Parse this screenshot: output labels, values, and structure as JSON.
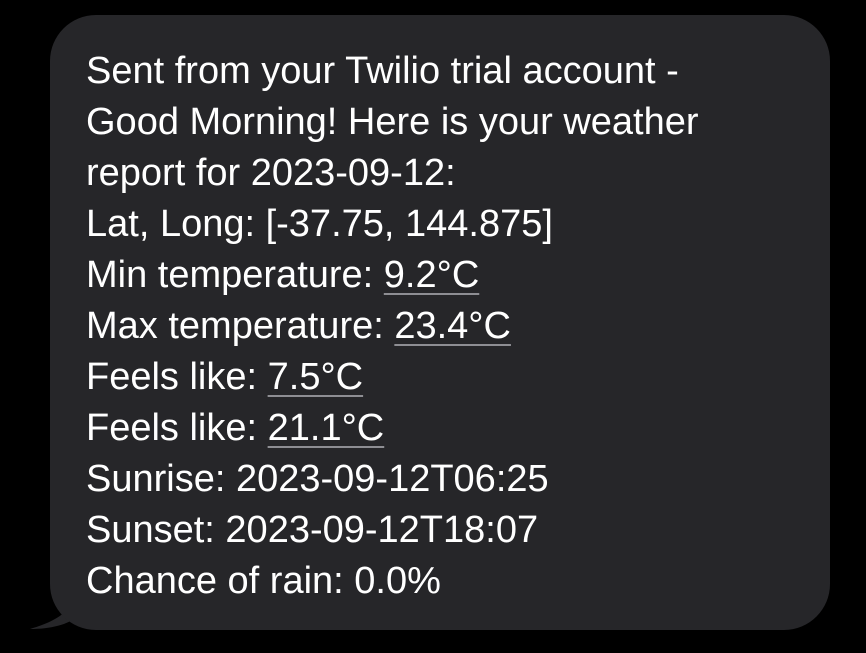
{
  "message": {
    "intro_line1": "Sent from your Twilio trial account -",
    "intro_line2": "Good Morning! Here is your weather",
    "intro_line3": "report for 2023-09-12:",
    "lat_long": "Lat, Long: [-37.75, 144.875]",
    "min_temp_label": "Min temperature: ",
    "min_temp_value": "9.2°C",
    "max_temp_label": "Max temperature: ",
    "max_temp_value": "23.4°C",
    "feels_like_1_label": "Feels like: ",
    "feels_like_1_value": "7.5°C",
    "feels_like_2_label": "Feels like: ",
    "feels_like_2_value": "21.1°C",
    "sunrise": "Sunrise: 2023-09-12T06:25",
    "sunset": "Sunset: 2023-09-12T18:07",
    "rain": "Chance of rain: 0.0%"
  },
  "colors": {
    "background": "#000000",
    "bubble": "#262629",
    "text": "#ffffff",
    "underline": "#8e8e93"
  }
}
